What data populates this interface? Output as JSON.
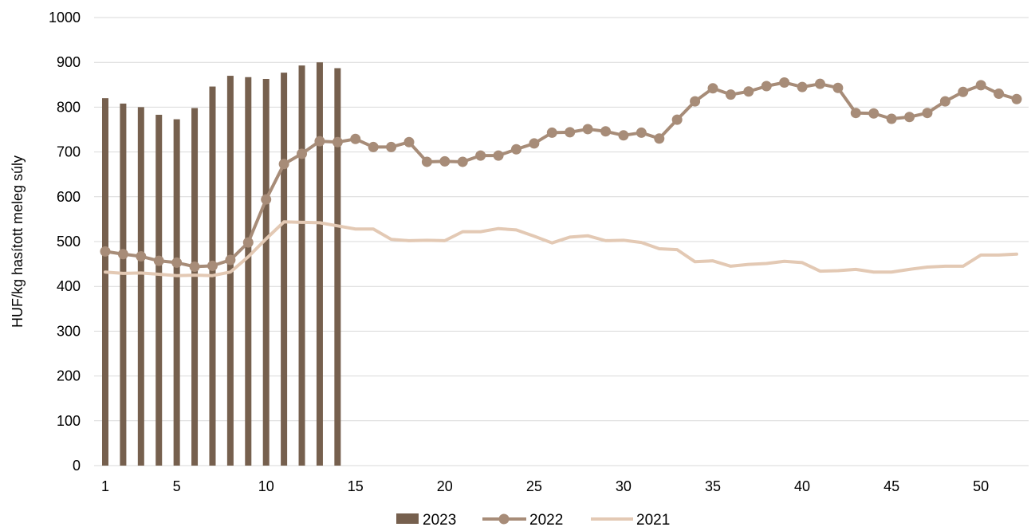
{
  "chart_data": {
    "type": "bar",
    "ylabel": "HUF/kg hasított meleg súly",
    "xlabel": "",
    "ylim": [
      0,
      1000
    ],
    "yticks": [
      "0",
      "100",
      "200",
      "300",
      "400",
      "500",
      "600",
      "700",
      "800",
      "900",
      "1000"
    ],
    "xticks": [
      "1",
      "5",
      "10",
      "15",
      "20",
      "25",
      "30",
      "35",
      "40",
      "45",
      "50"
    ],
    "xrange": [
      1,
      52
    ],
    "grid": "horizontal",
    "legend_position": "bottom",
    "colors": {
      "s2023": "#76604E",
      "s2022": "#A78C78",
      "s2021": "#E3C9B4",
      "grid": "#D9D9D9"
    },
    "series": [
      {
        "name": "2023",
        "type": "bar",
        "x": [
          1,
          2,
          3,
          4,
          5,
          6,
          7,
          8,
          9,
          10,
          11,
          12,
          13,
          14
        ],
        "values": [
          820,
          808,
          800,
          783,
          773,
          798,
          846,
          870,
          867,
          863,
          877,
          893,
          900,
          887
        ]
      },
      {
        "name": "2022",
        "type": "line-markers",
        "x": [
          1,
          2,
          3,
          4,
          5,
          6,
          7,
          8,
          9,
          10,
          11,
          12,
          13,
          14,
          15,
          16,
          17,
          18,
          19,
          20,
          21,
          22,
          23,
          24,
          25,
          26,
          27,
          28,
          29,
          30,
          31,
          32,
          33,
          34,
          35,
          36,
          37,
          38,
          39,
          40,
          41,
          42,
          43,
          44,
          45,
          46,
          47,
          48,
          49,
          50,
          51,
          52
        ],
        "values": [
          478,
          472,
          467,
          457,
          453,
          444,
          446,
          459,
          498,
          594,
          673,
          696,
          724,
          722,
          729,
          711,
          711,
          722,
          678,
          679,
          678,
          692,
          692,
          706,
          719,
          743,
          744,
          751,
          746,
          737,
          743,
          730,
          772,
          813,
          842,
          828,
          835,
          847,
          855,
          845,
          852,
          843,
          787,
          786,
          774,
          778,
          787,
          813,
          834,
          849,
          830,
          818
        ]
      },
      {
        "name": "2021",
        "type": "line",
        "x": [
          1,
          2,
          3,
          4,
          5,
          6,
          7,
          8,
          9,
          10,
          11,
          12,
          13,
          14,
          15,
          16,
          17,
          18,
          19,
          20,
          21,
          22,
          23,
          24,
          25,
          26,
          27,
          28,
          29,
          30,
          31,
          32,
          33,
          34,
          35,
          36,
          37,
          38,
          39,
          40,
          41,
          42,
          43,
          44,
          45,
          46,
          47,
          48,
          49,
          50,
          51,
          52
        ],
        "values": [
          432,
          429,
          430,
          427,
          424,
          425,
          424,
          432,
          466,
          506,
          544,
          543,
          542,
          535,
          528,
          528,
          505,
          502,
          503,
          502,
          522,
          522,
          529,
          526,
          512,
          497,
          510,
          513,
          502,
          503,
          498,
          484,
          482,
          455,
          457,
          445,
          449,
          451,
          456,
          453,
          434,
          435,
          438,
          432,
          432,
          438,
          443,
          445,
          445,
          470,
          470,
          472
        ]
      }
    ]
  }
}
